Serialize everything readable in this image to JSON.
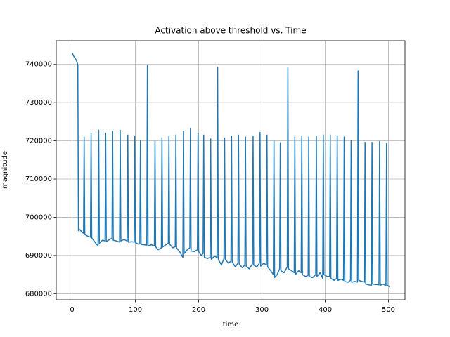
{
  "chart_data": {
    "type": "line",
    "title": "Activation above threshold vs. Time",
    "x_label": "time",
    "y_label": "magnitude",
    "color": "#1f77b4",
    "grid": true,
    "xlim": [
      -25.1,
      526.1
    ],
    "ylim": [
      678400,
      746200
    ],
    "xticks": [
      0,
      100,
      200,
      300,
      400,
      500
    ],
    "yticks": [
      680000,
      690000,
      700000,
      710000,
      720000,
      730000,
      740000
    ],
    "x": [
      0,
      3,
      6,
      8,
      9,
      10,
      12,
      15,
      18,
      19,
      20,
      25,
      29,
      30,
      31,
      36,
      41,
      42,
      43,
      48,
      52,
      53,
      54,
      59,
      63,
      64,
      65,
      70,
      75,
      76,
      77,
      82,
      87,
      88,
      89,
      94,
      98,
      99,
      100,
      104,
      107,
      108,
      109,
      114,
      118,
      119,
      120,
      125,
      130,
      131,
      132,
      136,
      141,
      142,
      143,
      148,
      152,
      153,
      154,
      159,
      163,
      164,
      165,
      170,
      175,
      176,
      177,
      182,
      186,
      187,
      188,
      193,
      198,
      199,
      200,
      204,
      207,
      208,
      209,
      214,
      218,
      219,
      220,
      225,
      229,
      230,
      231,
      236,
      240,
      241,
      242,
      247,
      251,
      252,
      253,
      258,
      262,
      263,
      264,
      269,
      273,
      274,
      275,
      280,
      285,
      286,
      287,
      292,
      296,
      297,
      298,
      303,
      307,
      308,
      309,
      314,
      318,
      319,
      320,
      324,
      328,
      329,
      330,
      335,
      340,
      341,
      342,
      347,
      351,
      352,
      353,
      358,
      362,
      363,
      364,
      369,
      373,
      374,
      375,
      380,
      385,
      386,
      387,
      392,
      396,
      397,
      398,
      403,
      407,
      408,
      409,
      414,
      418,
      419,
      420,
      425,
      429,
      430,
      431,
      436,
      440,
      441,
      442,
      447,
      451,
      452,
      453,
      458,
      462,
      463,
      464,
      469,
      473,
      474,
      475,
      480,
      485,
      486,
      487,
      492,
      496,
      497,
      498,
      502
    ],
    "values": [
      743000,
      742000,
      741300,
      740500,
      739800,
      696500,
      696800,
      696200,
      695800,
      721000,
      695500,
      695000,
      694800,
      722000,
      694600,
      693500,
      692500,
      722800,
      693200,
      694000,
      693800,
      722000,
      693600,
      694200,
      694500,
      722500,
      694000,
      693800,
      693500,
      722800,
      693800,
      694200,
      693800,
      721500,
      693500,
      693600,
      693500,
      721200,
      693400,
      693000,
      693000,
      720000,
      692900,
      692800,
      692700,
      739700,
      692500,
      692800,
      692500,
      720000,
      692300,
      691500,
      692000,
      720800,
      692200,
      692800,
      693200,
      721200,
      693000,
      692000,
      692300,
      721500,
      692000,
      691000,
      689500,
      722500,
      690500,
      691500,
      692000,
      723200,
      691200,
      691000,
      691500,
      722000,
      691000,
      690000,
      690500,
      721500,
      689500,
      689200,
      689500,
      720500,
      689000,
      689800,
      689500,
      739200,
      689000,
      687500,
      689200,
      720700,
      689000,
      688000,
      688500,
      721200,
      688300,
      687000,
      688000,
      721500,
      687800,
      686800,
      687500,
      721000,
      687200,
      686500,
      687800,
      721200,
      687500,
      687000,
      688000,
      722200,
      687200,
      688000,
      687500,
      721500,
      687000,
      686000,
      685000,
      720000,
      684200,
      685000,
      686500,
      719500,
      686000,
      685500,
      687000,
      739100,
      686500,
      686000,
      685500,
      721000,
      685000,
      686000,
      685500,
      721200,
      685000,
      684500,
      684800,
      721000,
      684500,
      684200,
      685000,
      721200,
      684500,
      685500,
      684000,
      721500,
      685000,
      684500,
      684500,
      721500,
      684000,
      683500,
      684000,
      721300,
      683500,
      683800,
      683500,
      721000,
      683200,
      683000,
      683500,
      720000,
      683000,
      683200,
      683000,
      738300,
      683500,
      683200,
      683000,
      719600,
      682500,
      682300,
      682200,
      719600,
      682500,
      682400,
      682300,
      719800,
      682200,
      682500,
      682000,
      719300,
      682200,
      681800
    ]
  }
}
